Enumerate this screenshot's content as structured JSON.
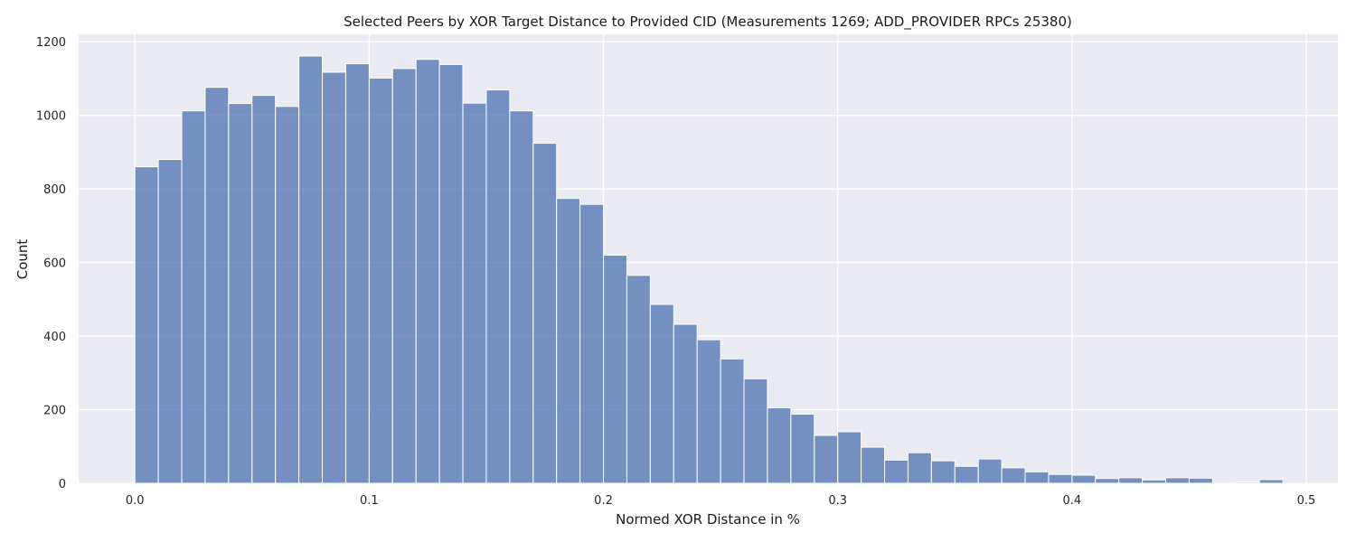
{
  "chart_data": {
    "type": "bar",
    "title": "Selected Peers by XOR Target Distance to Provided CID (Measurements 1269; ADD_PROVIDER RPCs 25380)",
    "xlabel": "Normed XOR Distance in %",
    "ylabel": "Count",
    "xlim": [
      -0.024,
      0.5135
    ],
    "ylim": [
      0,
      1220
    ],
    "bin_start": 0.0,
    "bin_width": 0.01,
    "xticks": [
      0.0,
      0.1,
      0.2,
      0.3,
      0.4,
      0.5
    ],
    "xtick_labels": [
      "0.0",
      "0.1",
      "0.2",
      "0.3",
      "0.4",
      "0.5"
    ],
    "yticks": [
      0,
      200,
      400,
      600,
      800,
      1000,
      1200
    ],
    "ytick_labels": [
      "0",
      "200",
      "400",
      "600",
      "800",
      "1000",
      "1200"
    ],
    "values": [
      860,
      880,
      1012,
      1076,
      1032,
      1054,
      1024,
      1161,
      1117,
      1140,
      1101,
      1127,
      1152,
      1138,
      1033,
      1069,
      1012,
      924,
      774,
      758,
      620,
      565,
      486,
      432,
      390,
      338,
      284,
      205,
      188,
      130,
      140,
      98,
      63,
      83,
      61,
      46,
      66,
      42,
      31,
      24,
      22,
      13,
      15,
      9,
      15,
      14,
      0,
      3,
      10
    ],
    "colors": {
      "bar": "#4c72b0",
      "background": "#eaeaf2",
      "grid": "#ffffff"
    },
    "grid": true
  }
}
